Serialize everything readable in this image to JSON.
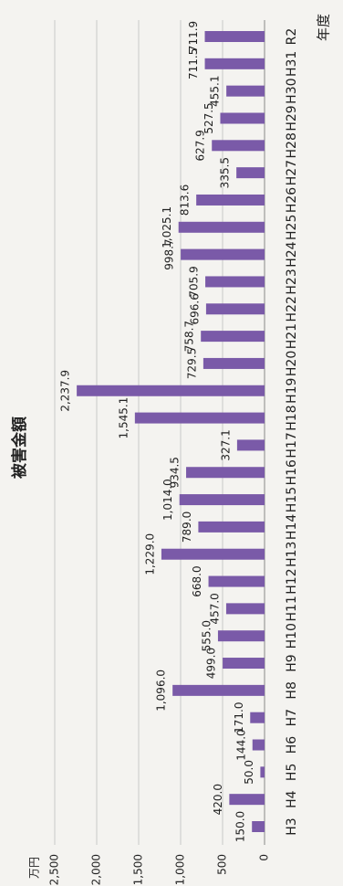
{
  "chart_data": {
    "type": "bar",
    "title": "被害金額",
    "y_label": "万円",
    "x_label": "年度",
    "categories": [
      "H3",
      "H4",
      "H5",
      "H6",
      "H7",
      "H8",
      "H9",
      "H10",
      "H11",
      "H12",
      "H13",
      "H14",
      "H15",
      "H16",
      "H17",
      "H18",
      "H19",
      "H20",
      "H21",
      "H22",
      "H23",
      "H24",
      "H25",
      "H26",
      "H27",
      "H28",
      "H29",
      "H30",
      "H31",
      "R2"
    ],
    "values": [
      150.0,
      420.0,
      50.0,
      144.0,
      171.0,
      1096.0,
      499.0,
      555.0,
      457.0,
      668.0,
      1229.0,
      789.0,
      1014.0,
      934.5,
      327.1,
      1545.1,
      2237.9,
      729.5,
      758.7,
      696.6,
      705.9,
      998.7,
      1025.1,
      813.6,
      335.5,
      627.9,
      527.5,
      455.1,
      711.5,
      711.9
    ],
    "value_labels": [
      "150.0",
      "420.0",
      "50.0",
      "144.0",
      "171.0",
      "1,096.0",
      "499.0",
      "555.0",
      "457.0",
      "668.0",
      "1,229.0",
      "789.0",
      "1,014.0",
      "934.5",
      "327.1",
      "1,545.1",
      "2,237.9",
      "729.5",
      "758.7",
      "696.6",
      "705.9",
      "998.7",
      "1,025.1",
      "813.6",
      "335.5",
      "627.9",
      "527.5",
      "455.1",
      "711.5",
      "711.9"
    ],
    "color": "#7a5aa8",
    "ylim": [
      0,
      2500
    ],
    "yticks": [
      0,
      {
        "value": 500,
        "label": "500"
      },
      {
        "value": 1000,
        "label": "1,000"
      },
      {
        "value": 1500,
        "label": "1,500"
      },
      {
        "value": 2000,
        "label": "2,000"
      },
      {
        "value": 2500,
        "label": "2,500"
      }
    ],
    "grid": true
  }
}
